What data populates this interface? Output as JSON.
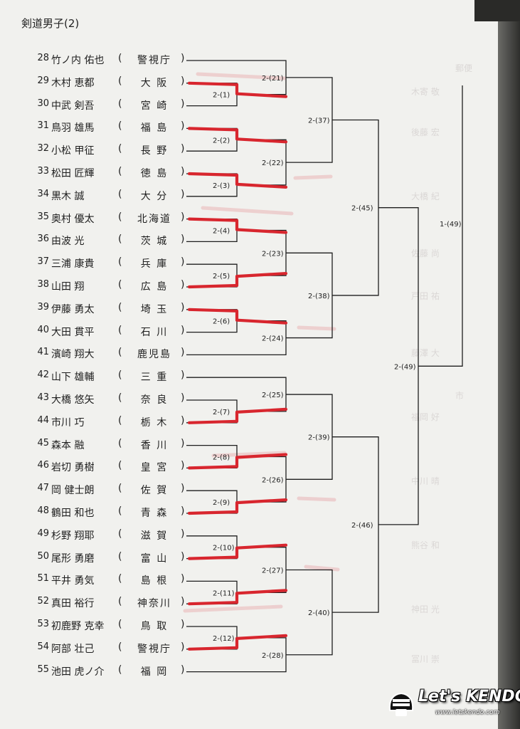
{
  "title": "剣道男子(2)",
  "entries": [
    {
      "num": "28",
      "name": "竹ノ内 佑也",
      "pref": "警視庁"
    },
    {
      "num": "29",
      "name": "木村 恵都",
      "pref": "大 阪"
    },
    {
      "num": "30",
      "name": "中武 剣吾",
      "pref": "宮 崎"
    },
    {
      "num": "31",
      "name": "鳥羽 雄馬",
      "pref": "福 島"
    },
    {
      "num": "32",
      "name": "小松 甲征",
      "pref": "長 野"
    },
    {
      "num": "33",
      "name": "松田 匠輝",
      "pref": "徳 島"
    },
    {
      "num": "34",
      "name": "黒木 誠",
      "pref": "大 分"
    },
    {
      "num": "35",
      "name": "奥村 優太",
      "pref": "北海道"
    },
    {
      "num": "36",
      "name": "由波 光",
      "pref": "茨 城"
    },
    {
      "num": "37",
      "name": "三浦 康貴",
      "pref": "兵 庫"
    },
    {
      "num": "38",
      "name": "山田 翔",
      "pref": "広 島"
    },
    {
      "num": "39",
      "name": "伊藤 勇太",
      "pref": "埼 玉"
    },
    {
      "num": "40",
      "name": "大田 貫平",
      "pref": "石 川"
    },
    {
      "num": "41",
      "name": "濱崎 翔大",
      "pref": "鹿児島"
    },
    {
      "num": "42",
      "name": "山下 雄輔",
      "pref": "三 重"
    },
    {
      "num": "43",
      "name": "大橋 悠矢",
      "pref": "奈 良"
    },
    {
      "num": "44",
      "name": "市川 巧",
      "pref": "栃 木"
    },
    {
      "num": "45",
      "name": "森本 融",
      "pref": "香 川"
    },
    {
      "num": "46",
      "name": "岩切 勇樹",
      "pref": "皇 宮"
    },
    {
      "num": "47",
      "name": "岡 健士朗",
      "pref": "佐 賀"
    },
    {
      "num": "48",
      "name": "鶴田 和也",
      "pref": "青 森"
    },
    {
      "num": "49",
      "name": "杉野 翔耶",
      "pref": "滋 賀"
    },
    {
      "num": "50",
      "name": "尾形 勇磨",
      "pref": "富 山"
    },
    {
      "num": "51",
      "name": "平井 勇気",
      "pref": "島 根"
    },
    {
      "num": "52",
      "name": "真田 裕行",
      "pref": "神奈川"
    },
    {
      "num": "53",
      "name": "初鹿野 克幸",
      "pref": "鳥 取"
    },
    {
      "num": "54",
      "name": "阿部 壮己",
      "pref": "警視庁"
    },
    {
      "num": "55",
      "name": "池田 虎ノ介",
      "pref": "福 岡"
    }
  ],
  "matches": {
    "m1": "2-(1)",
    "m2": "2-(2)",
    "m3": "2-(3)",
    "m4": "2-(4)",
    "m5": "2-(5)",
    "m6": "2-(6)",
    "m7": "2-(7)",
    "m8": "2-(8)",
    "m9": "2-(9)",
    "m10": "2-(10)",
    "m11": "2-(11)",
    "m12": "2-(12)",
    "m21": "2-(21)",
    "m22": "2-(22)",
    "m23": "2-(23)",
    "m24": "2-(24)",
    "m25": "2-(25)",
    "m26": "2-(26)",
    "m27": "2-(27)",
    "m28": "2-(28)",
    "m37": "2-(37)",
    "m38": "2-(38)",
    "m39": "2-(39)",
    "m40": "2-(40)",
    "m45": "2-(45)",
    "m46": "2-(46)",
    "m49a": "2-(49)",
    "m49b": "1-(49)"
  },
  "watermark": {
    "text": "Let's KENDO!",
    "url": "www.letskendo.com",
    "logo_text": "UKO"
  },
  "colors": {
    "paper": "#f1f1ee",
    "ink": "#1e1e1e",
    "marker": "#d8262e",
    "bleed": "#e8a6aa"
  }
}
